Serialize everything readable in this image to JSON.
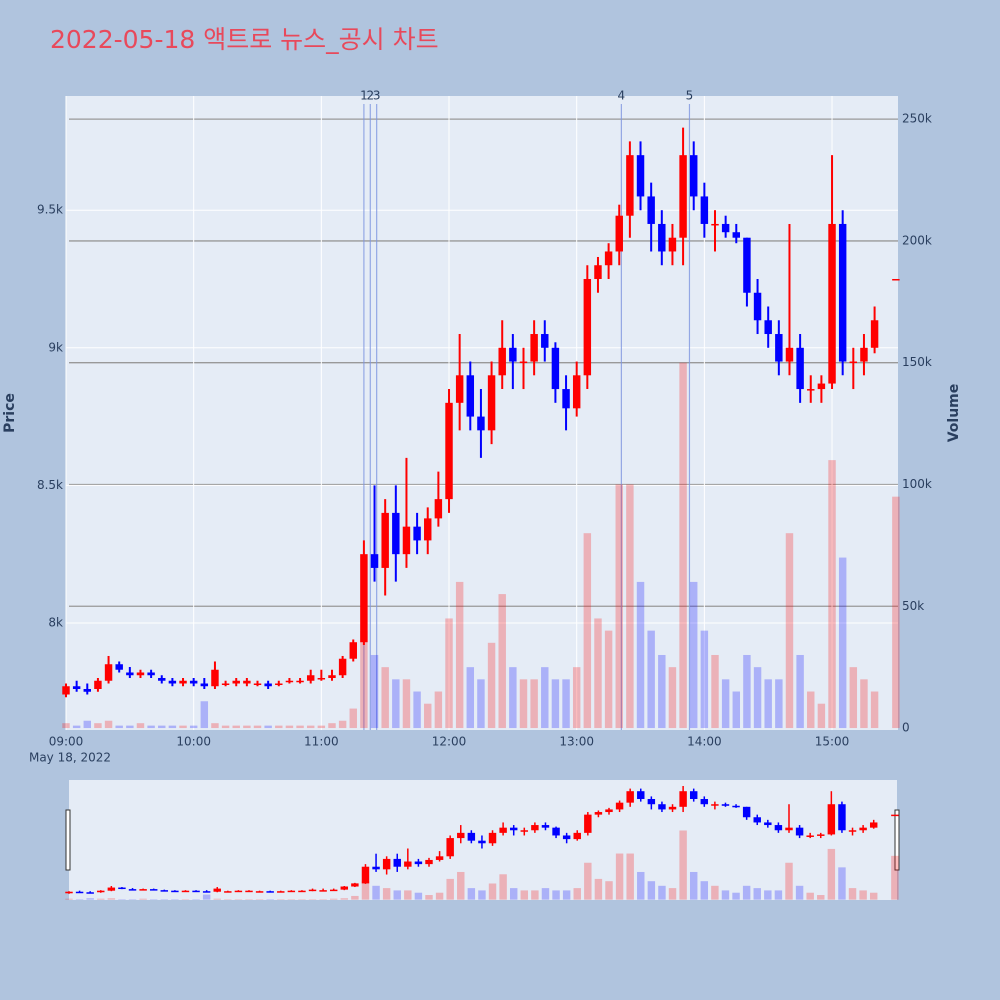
{
  "chart_data": {
    "type": "candlestick",
    "title": "2022-05-18 액트로 뉴스_공시 차트",
    "x": [
      "09:00",
      "09:05",
      "09:10",
      "09:15",
      "09:20",
      "09:25",
      "09:30",
      "09:35",
      "09:40",
      "09:45",
      "09:50",
      "09:55",
      "10:00",
      "10:05",
      "10:10",
      "10:15",
      "10:20",
      "10:25",
      "10:30",
      "10:35",
      "10:40",
      "10:45",
      "10:50",
      "10:55",
      "11:00",
      "11:05",
      "11:10",
      "11:15",
      "11:20",
      "11:25",
      "11:30",
      "11:35",
      "11:40",
      "11:45",
      "11:50",
      "11:55",
      "12:00",
      "12:05",
      "12:10",
      "12:15",
      "12:20",
      "12:25",
      "12:30",
      "12:35",
      "12:40",
      "12:45",
      "12:50",
      "12:55",
      "13:00",
      "13:05",
      "13:10",
      "13:15",
      "13:20",
      "13:25",
      "13:30",
      "13:35",
      "13:40",
      "13:45",
      "13:50",
      "13:55",
      "14:00",
      "14:05",
      "14:10",
      "14:15",
      "14:20",
      "14:25",
      "14:30",
      "14:35",
      "14:40",
      "14:45",
      "14:50",
      "14:55",
      "15:00",
      "15:05",
      "15:10",
      "15:15",
      "15:20",
      "15:30"
    ],
    "open": [
      7740,
      7770,
      7760,
      7760,
      7790,
      7850,
      7820,
      7810,
      7820,
      7800,
      7790,
      7780,
      7790,
      7780,
      7770,
      7780,
      7780,
      7780,
      7780,
      7780,
      7780,
      7790,
      7790,
      7790,
      7800,
      7800,
      7810,
      7870,
      7930,
      8250,
      8200,
      8400,
      8250,
      8350,
      8300,
      8380,
      8450,
      8800,
      8900,
      8750,
      8700,
      8900,
      9000,
      8950,
      8950,
      9050,
      9000,
      8850,
      8780,
      8900,
      9250,
      9300,
      9350,
      9480,
      9700,
      9550,
      9450,
      9350,
      9400,
      9700,
      9550,
      9450,
      9450,
      9420,
      9400,
      9200,
      9100,
      9050,
      8950,
      9000,
      8850,
      8850,
      8870,
      9450,
      8950,
      8950,
      9000,
      9250
    ],
    "high": [
      7780,
      7790,
      7780,
      7800,
      7880,
      7860,
      7840,
      7830,
      7830,
      7810,
      7800,
      7800,
      7800,
      7800,
      7860,
      7790,
      7800,
      7800,
      7790,
      7790,
      7790,
      7800,
      7800,
      7830,
      7830,
      7830,
      7880,
      7940,
      8300,
      8500,
      8450,
      8500,
      8600,
      8400,
      8420,
      8550,
      8850,
      9050,
      8950,
      8850,
      8950,
      9100,
      9050,
      9000,
      9100,
      9100,
      9020,
      8900,
      8950,
      9300,
      9330,
      9380,
      9520,
      9750,
      9750,
      9600,
      9500,
      9450,
      9800,
      9750,
      9600,
      9500,
      9480,
      9450,
      9400,
      9250,
      9150,
      9100,
      9450,
      9050,
      8900,
      8900,
      9700,
      9500,
      9000,
      9050,
      9150,
      9250
    ],
    "low": [
      7730,
      7750,
      7740,
      7750,
      7780,
      7820,
      7800,
      7800,
      7800,
      7780,
      7770,
      7770,
      7770,
      7760,
      7760,
      7770,
      7770,
      7770,
      7770,
      7760,
      7770,
      7780,
      7780,
      7780,
      7790,
      7790,
      7800,
      7860,
      7920,
      8150,
      8100,
      8150,
      8200,
      8250,
      8250,
      8350,
      8400,
      8700,
      8700,
      8600,
      8650,
      8850,
      8850,
      8850,
      8900,
      8950,
      8800,
      8700,
      8750,
      8850,
      9200,
      9250,
      9300,
      9400,
      9500,
      9350,
      9300,
      9300,
      9300,
      9500,
      9400,
      9350,
      9400,
      9380,
      9150,
      9050,
      9000,
      8900,
      8900,
      8800,
      8800,
      8800,
      8850,
      8900,
      8850,
      8900,
      8980,
      9250
    ],
    "close": [
      7770,
      7760,
      7750,
      7790,
      7850,
      7830,
      7810,
      7820,
      7810,
      7790,
      7780,
      7790,
      7780,
      7770,
      7830,
      7780,
      7790,
      7790,
      7780,
      7770,
      7780,
      7790,
      7790,
      7810,
      7800,
      7810,
      7870,
      7930,
      8250,
      8200,
      8400,
      8250,
      8350,
      8300,
      8380,
      8450,
      8800,
      8900,
      8750,
      8700,
      8900,
      9000,
      8950,
      8950,
      9050,
      9000,
      8850,
      8780,
      8900,
      9250,
      9300,
      9350,
      9480,
      9700,
      9550,
      9450,
      9350,
      9400,
      9700,
      9550,
      9450,
      9450,
      9420,
      9400,
      9200,
      9100,
      9050,
      8950,
      9000,
      8850,
      8850,
      8870,
      9450,
      8950,
      8950,
      9000,
      9100,
      9250
    ],
    "volume": [
      2000,
      1000,
      3000,
      2000,
      3000,
      1000,
      1000,
      2000,
      1000,
      1000,
      1000,
      1000,
      1000,
      11000,
      2000,
      1000,
      1000,
      1000,
      1000,
      1000,
      1000,
      1000,
      1000,
      1000,
      1000,
      2000,
      3000,
      8000,
      40000,
      30000,
      25000,
      20000,
      20000,
      15000,
      10000,
      15000,
      45000,
      60000,
      25000,
      20000,
      35000,
      55000,
      25000,
      20000,
      20000,
      25000,
      20000,
      20000,
      25000,
      80000,
      45000,
      40000,
      100000,
      100000,
      60000,
      40000,
      30000,
      25000,
      150000,
      60000,
      40000,
      30000,
      20000,
      15000,
      30000,
      25000,
      20000,
      20000,
      80000,
      30000,
      15000,
      10000,
      110000,
      70000,
      25000,
      20000,
      15000,
      95000
    ],
    "increasing_color": "#ff0000",
    "decreasing_color": "#0000ff",
    "xlim": [
      "09:00",
      "15:31"
    ],
    "xticks": [
      "09:00",
      "10:00",
      "11:00",
      "12:00",
      "13:00",
      "14:00",
      "15:00"
    ],
    "x_date_label": "May 18, 2022",
    "ylabel": "Price",
    "ylim": [
      7611,
      9915
    ],
    "yticks": [
      {
        "value": 8000,
        "label": "8k"
      },
      {
        "value": 8500,
        "label": "8.5k"
      },
      {
        "value": 9000,
        "label": "9k"
      },
      {
        "value": 9500,
        "label": "9.5k"
      }
    ],
    "y2label": "Volume",
    "y2lim": [
      -800,
      259500
    ],
    "y2ticks": [
      0,
      {
        "value": 50000,
        "label": "50k"
      },
      {
        "value": 100000,
        "label": "100k"
      },
      {
        "value": 150000,
        "label": "150k"
      },
      {
        "value": 200000,
        "label": "200k"
      },
      {
        "value": 250000,
        "label": "250k"
      }
    ],
    "news": [
      {
        "x": "11:20",
        "label": "1"
      },
      {
        "x": "11:23",
        "label": "2"
      },
      {
        "x": "11:26",
        "label": "3"
      },
      {
        "x": "13:21",
        "label": "4"
      },
      {
        "x": "13:53",
        "label": "5"
      }
    ],
    "grid": true,
    "rangeslider": true
  }
}
